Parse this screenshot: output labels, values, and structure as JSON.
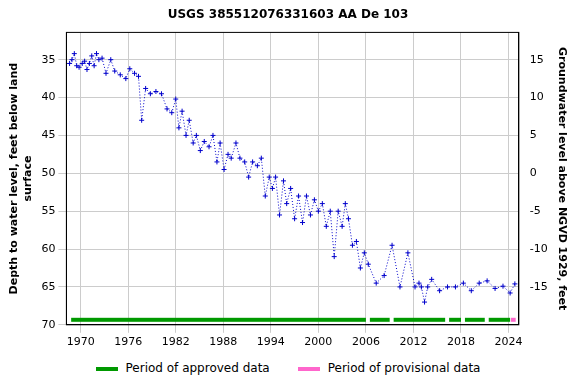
{
  "chart_data": {
    "type": "scatter",
    "title": "USGS 385512076331603 AA De 103",
    "y_label": [
      "Depth to water level, feet below land",
      "surface"
    ],
    "y2_label": "Groundwater level above NGVD 1929, feet",
    "xlim": [
      1968.2,
      2025.3
    ],
    "xticks": [
      1970,
      1976,
      1982,
      1988,
      1994,
      2000,
      2006,
      2012,
      2018,
      2024
    ],
    "ylim": [
      31.4,
      70
    ],
    "yticks": [
      35,
      40,
      45,
      50,
      55,
      60,
      65,
      70
    ],
    "y2lim": [
      -20,
      18.6
    ],
    "y2ticks": [
      -15,
      -10,
      -5,
      0,
      5,
      10,
      15
    ],
    "grid": true,
    "series": [
      {
        "name": "Depth to water level",
        "color": "#0000cc",
        "marker": "cross",
        "line_style": "dotted",
        "x": [
          1968.6,
          1968.9,
          1969.2,
          1969.5,
          1969.8,
          1970.2,
          1970.5,
          1970.8,
          1971.1,
          1971.4,
          1971.7,
          1972.0,
          1972.3,
          1972.7,
          1973.2,
          1973.8,
          1974.3,
          1975.0,
          1975.7,
          1976.2,
          1976.8,
          1977.3,
          1977.7,
          1978.2,
          1978.8,
          1979.5,
          1980.2,
          1980.9,
          1981.5,
          1982.0,
          1982.4,
          1982.8,
          1983.3,
          1983.7,
          1984.2,
          1984.6,
          1985.1,
          1985.6,
          1986.2,
          1986.7,
          1987.2,
          1987.6,
          1988.1,
          1988.6,
          1989.0,
          1989.6,
          1990.1,
          1990.7,
          1991.2,
          1991.7,
          1992.3,
          1992.8,
          1993.3,
          1993.8,
          1994.2,
          1994.6,
          1995.1,
          1995.6,
          1996.0,
          1996.5,
          1997.0,
          1997.5,
          1998.0,
          1998.5,
          1999.0,
          1999.5,
          2000.0,
          2000.5,
          2001.0,
          2001.5,
          2002.0,
          2002.5,
          2003.0,
          2003.4,
          2003.8,
          2004.3,
          2004.8,
          2005.3,
          2005.8,
          2006.3,
          2007.3,
          2008.3,
          2009.3,
          2010.3,
          2011.3,
          2012.2,
          2012.7,
          2013.0,
          2013.4,
          2013.8,
          2014.3,
          2015.3,
          2016.3,
          2017.3,
          2018.3,
          2019.3,
          2020.3,
          2021.3,
          2022.3,
          2023.3,
          2024.2,
          2024.8
        ],
        "values": [
          35.5,
          35.0,
          34.2,
          35.8,
          36.0,
          35.5,
          35.2,
          36.3,
          35.5,
          34.5,
          35.8,
          34.2,
          35.0,
          34.8,
          36.8,
          35.0,
          36.5,
          37.0,
          37.5,
          36.2,
          36.8,
          37.2,
          43.0,
          38.8,
          39.5,
          39.2,
          39.5,
          41.5,
          42.0,
          40.2,
          44.0,
          41.8,
          45.0,
          43.0,
          46.0,
          45.0,
          47.0,
          45.8,
          46.5,
          45.0,
          48.5,
          46.0,
          49.5,
          47.5,
          48.0,
          46.0,
          48.0,
          48.5,
          50.5,
          48.5,
          49.0,
          48.0,
          53.0,
          50.5,
          52.0,
          50.5,
          55.5,
          51.0,
          54.0,
          52.0,
          56.0,
          53.0,
          56.5,
          53.0,
          55.5,
          53.5,
          55.0,
          54.0,
          57.0,
          55.0,
          61.0,
          55.0,
          57.0,
          54.0,
          56.0,
          59.5,
          59.0,
          62.5,
          60.5,
          62.0,
          64.5,
          63.5,
          59.5,
          65.0,
          60.5,
          65.0,
          64.5,
          65.0,
          67.0,
          65.0,
          64.0,
          65.5,
          65.0,
          65.0,
          64.5,
          65.5,
          64.5,
          64.2,
          65.2,
          64.9,
          65.8,
          64.6
        ]
      }
    ],
    "approved_periods": {
      "name": "Period of approved data",
      "color": "#009900",
      "ranges": [
        [
          1968.8,
          2006.0
        ],
        [
          2006.5,
          2009.0
        ],
        [
          2009.5,
          2016.0
        ],
        [
          2016.5,
          2018.0
        ],
        [
          2018.5,
          2021.0
        ],
        [
          2021.5,
          2024.2
        ]
      ]
    },
    "provisional_periods": {
      "name": "Period of provisional data",
      "color": "#ff66cc",
      "ranges": [
        [
          2024.3,
          2024.9
        ]
      ]
    }
  }
}
